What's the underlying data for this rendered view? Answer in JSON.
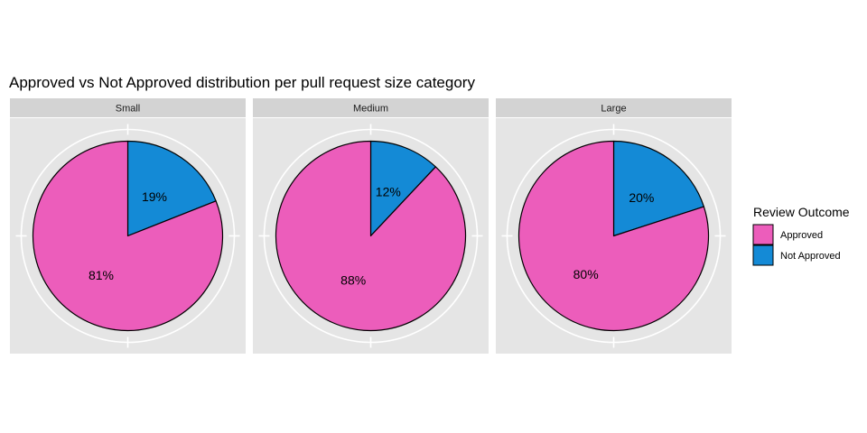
{
  "chart_data": {
    "type": "pie",
    "title": "Approved vs Not Approved distribution per pull request size category",
    "facets": [
      {
        "label": "Small",
        "slices": [
          {
            "name": "Not Approved",
            "value": 19,
            "label": "19%"
          },
          {
            "name": "Approved",
            "value": 81,
            "label": "81%"
          }
        ]
      },
      {
        "label": "Medium",
        "slices": [
          {
            "name": "Not Approved",
            "value": 12,
            "label": "12%"
          },
          {
            "name": "Approved",
            "value": 88,
            "label": "88%"
          }
        ]
      },
      {
        "label": "Large",
        "slices": [
          {
            "name": "Not Approved",
            "value": 20,
            "label": "20%"
          },
          {
            "name": "Approved",
            "value": 80,
            "label": "80%"
          }
        ]
      }
    ],
    "legend": {
      "title": "Review Outcome",
      "placement": "right",
      "entries": [
        {
          "name": "Approved",
          "color": "#ec5dbb"
        },
        {
          "name": "Not Approved",
          "color": "#148ad6"
        }
      ]
    },
    "colors": {
      "Approved": "#ec5dbb",
      "Not Approved": "#148ad6",
      "panel_background": "#e5e5e5",
      "strip_background": "#d3d3d3",
      "grid": "#ffffff"
    },
    "grid": true
  }
}
